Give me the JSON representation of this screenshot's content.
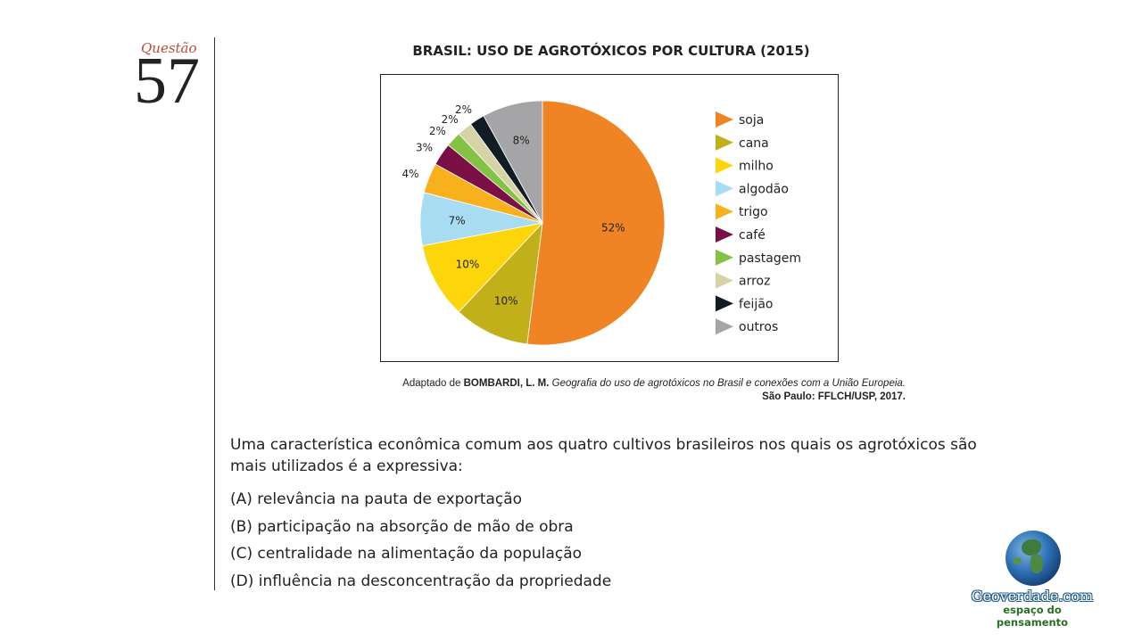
{
  "question": {
    "label": "Questão",
    "number": "57",
    "text": "Uma característica econômica comum aos quatro cultivos brasileiros nos quais os agrotóxicos são mais utilizados é a expressiva:",
    "options": [
      "(A) relevância na pauta de exportação",
      "(B) participação na absorção de mão de obra",
      "(C) centralidade na alimentação da população",
      "(D) influência na desconcentração da propriedade"
    ]
  },
  "source": {
    "line1_prefix": "Adaptado de",
    "author": "BOMBARDI, L. M.",
    "work": "Geografia do uso de agrotóxicos no Brasil e conexões com a União Europeia.",
    "line2": "São Paulo: FFLCH/USP, 2017."
  },
  "logo": {
    "name": "Geoverdade.com",
    "tagline": "espaço do pensamento"
  },
  "chart_data": {
    "type": "pie",
    "title": "BRASIL: USO DE AGROTÓXICOS POR CULTURA (2015)",
    "legend_position": "right",
    "slices": [
      {
        "label": "soja",
        "value": 52,
        "value_label": "52%",
        "color": "#f08424"
      },
      {
        "label": "cana",
        "value": 10,
        "value_label": "10%",
        "color": "#c2b01a"
      },
      {
        "label": "milho",
        "value": 10,
        "value_label": "10%",
        "color": "#fcd60a"
      },
      {
        "label": "algodão",
        "value": 7,
        "value_label": "7%",
        "color": "#a8dcf3"
      },
      {
        "label": "trigo",
        "value": 4,
        "value_label": "4%",
        "color": "#f9b01d"
      },
      {
        "label": "café",
        "value": 3,
        "value_label": "3%",
        "color": "#7a1045"
      },
      {
        "label": "pastagem",
        "value": 2,
        "value_label": "2%",
        "color": "#84c244"
      },
      {
        "label": "arroz",
        "value": 2,
        "value_label": "2%",
        "color": "#d6d3a6"
      },
      {
        "label": "feijão",
        "value": 2,
        "value_label": "2%",
        "color": "#111c25"
      },
      {
        "label": "outros",
        "value": 8,
        "value_label": "8%",
        "color": "#a5a5a8"
      }
    ]
  }
}
